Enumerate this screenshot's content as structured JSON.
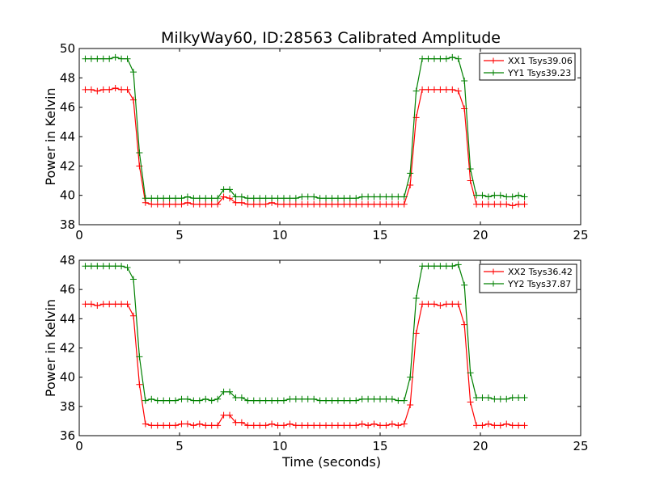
{
  "chart_data": {
    "type": "line",
    "title": "MilkyWay60, ID:28563 Calibrated Amplitude",
    "xlabel": "Time (seconds)",
    "grid": false,
    "panels": [
      {
        "ylabel": "Power in Kelvin",
        "xlim": [
          0,
          25
        ],
        "ylim": [
          38,
          50
        ],
        "xticks": [
          "0",
          "5",
          "10",
          "15",
          "20",
          "25"
        ],
        "yticks": [
          "38",
          "40",
          "42",
          "44",
          "46",
          "48",
          "50"
        ],
        "legend_position": "top-right",
        "x": [
          0.3,
          0.6,
          0.9,
          1.2,
          1.5,
          1.8,
          2.1,
          2.4,
          2.7,
          3.0,
          3.3,
          3.6,
          3.9,
          4.2,
          4.5,
          4.8,
          5.1,
          5.4,
          5.7,
          6.0,
          6.3,
          6.6,
          6.9,
          7.2,
          7.5,
          7.8,
          8.1,
          8.4,
          8.7,
          9.0,
          9.3,
          9.6,
          9.9,
          10.2,
          10.5,
          10.8,
          11.1,
          11.4,
          11.7,
          12.0,
          12.3,
          12.6,
          12.9,
          13.2,
          13.5,
          13.8,
          14.1,
          14.4,
          14.7,
          15.0,
          15.3,
          15.6,
          15.9,
          16.2,
          16.5,
          16.8,
          17.1,
          17.4,
          17.7,
          18.0,
          18.3,
          18.6,
          18.9,
          19.2,
          19.5,
          19.8,
          20.1,
          20.4,
          20.7,
          21.0,
          21.3,
          21.6,
          21.9,
          22.2
        ],
        "series": [
          {
            "name": "XX1 Tsys39.06",
            "color": "#ff0000",
            "values": [
              47.2,
              47.2,
              47.1,
              47.2,
              47.2,
              47.3,
              47.2,
              47.2,
              46.5,
              42.0,
              39.5,
              39.4,
              39.4,
              39.4,
              39.4,
              39.4,
              39.4,
              39.5,
              39.4,
              39.4,
              39.4,
              39.4,
              39.4,
              39.9,
              39.8,
              39.5,
              39.5,
              39.4,
              39.4,
              39.4,
              39.4,
              39.5,
              39.4,
              39.4,
              39.4,
              39.4,
              39.4,
              39.4,
              39.4,
              39.4,
              39.4,
              39.4,
              39.4,
              39.4,
              39.4,
              39.4,
              39.4,
              39.4,
              39.4,
              39.4,
              39.4,
              39.4,
              39.4,
              39.4,
              40.7,
              45.3,
              47.2,
              47.2,
              47.2,
              47.2,
              47.2,
              47.2,
              47.1,
              45.9,
              41.0,
              39.4,
              39.4,
              39.4,
              39.4,
              39.4,
              39.4,
              39.3,
              39.4,
              39.4
            ]
          },
          {
            "name": "YY1 Tsys39.23",
            "color": "#008000",
            "values": [
              49.3,
              49.3,
              49.3,
              49.3,
              49.3,
              49.4,
              49.3,
              49.3,
              48.4,
              42.9,
              39.8,
              39.8,
              39.8,
              39.8,
              39.8,
              39.8,
              39.8,
              39.9,
              39.8,
              39.8,
              39.8,
              39.8,
              39.8,
              40.4,
              40.4,
              39.9,
              39.9,
              39.8,
              39.8,
              39.8,
              39.8,
              39.8,
              39.8,
              39.8,
              39.8,
              39.8,
              39.9,
              39.9,
              39.9,
              39.8,
              39.8,
              39.8,
              39.8,
              39.8,
              39.8,
              39.8,
              39.9,
              39.9,
              39.9,
              39.9,
              39.9,
              39.9,
              39.9,
              39.9,
              41.5,
              47.1,
              49.3,
              49.3,
              49.3,
              49.3,
              49.3,
              49.4,
              49.3,
              47.8,
              41.8,
              40.0,
              40.0,
              39.9,
              40.0,
              40.0,
              39.9,
              39.9,
              40.0,
              39.9
            ]
          }
        ]
      },
      {
        "ylabel": "Power in Kelvin",
        "xlim": [
          0,
          25
        ],
        "ylim": [
          36,
          48
        ],
        "xticks": [
          "0",
          "5",
          "10",
          "15",
          "20",
          "25"
        ],
        "yticks": [
          "36",
          "38",
          "40",
          "42",
          "44",
          "46",
          "48"
        ],
        "legend_position": "top-right",
        "x": [
          0.3,
          0.6,
          0.9,
          1.2,
          1.5,
          1.8,
          2.1,
          2.4,
          2.7,
          3.0,
          3.3,
          3.6,
          3.9,
          4.2,
          4.5,
          4.8,
          5.1,
          5.4,
          5.7,
          6.0,
          6.3,
          6.6,
          6.9,
          7.2,
          7.5,
          7.8,
          8.1,
          8.4,
          8.7,
          9.0,
          9.3,
          9.6,
          9.9,
          10.2,
          10.5,
          10.8,
          11.1,
          11.4,
          11.7,
          12.0,
          12.3,
          12.6,
          12.9,
          13.2,
          13.5,
          13.8,
          14.1,
          14.4,
          14.7,
          15.0,
          15.3,
          15.6,
          15.9,
          16.2,
          16.5,
          16.8,
          17.1,
          17.4,
          17.7,
          18.0,
          18.3,
          18.6,
          18.9,
          19.2,
          19.5,
          19.8,
          20.1,
          20.4,
          20.7,
          21.0,
          21.3,
          21.6,
          21.9,
          22.2
        ],
        "series": [
          {
            "name": "XX2 Tsys36.42",
            "color": "#ff0000",
            "values": [
              45.0,
              45.0,
              44.9,
              45.0,
              45.0,
              45.0,
              45.0,
              45.0,
              44.2,
              39.5,
              36.8,
              36.7,
              36.7,
              36.7,
              36.7,
              36.7,
              36.8,
              36.8,
              36.7,
              36.8,
              36.7,
              36.7,
              36.7,
              37.4,
              37.4,
              36.9,
              36.9,
              36.7,
              36.7,
              36.7,
              36.7,
              36.8,
              36.7,
              36.7,
              36.8,
              36.7,
              36.7,
              36.7,
              36.7,
              36.7,
              36.7,
              36.7,
              36.7,
              36.7,
              36.7,
              36.7,
              36.8,
              36.7,
              36.8,
              36.7,
              36.7,
              36.8,
              36.7,
              36.8,
              38.1,
              43.0,
              45.0,
              45.0,
              45.0,
              44.9,
              45.0,
              45.0,
              45.0,
              43.6,
              38.3,
              36.7,
              36.7,
              36.8,
              36.7,
              36.7,
              36.8,
              36.7,
              36.7,
              36.7
            ]
          },
          {
            "name": "YY2 Tsys37.87",
            "color": "#008000",
            "values": [
              47.6,
              47.6,
              47.6,
              47.6,
              47.6,
              47.6,
              47.6,
              47.5,
              46.7,
              41.4,
              38.4,
              38.5,
              38.4,
              38.4,
              38.4,
              38.4,
              38.5,
              38.5,
              38.4,
              38.4,
              38.5,
              38.4,
              38.5,
              39.0,
              39.0,
              38.6,
              38.6,
              38.4,
              38.4,
              38.4,
              38.4,
              38.4,
              38.4,
              38.4,
              38.5,
              38.5,
              38.5,
              38.5,
              38.5,
              38.4,
              38.4,
              38.4,
              38.4,
              38.4,
              38.4,
              38.4,
              38.5,
              38.5,
              38.5,
              38.5,
              38.5,
              38.5,
              38.4,
              38.4,
              40.0,
              45.4,
              47.6,
              47.6,
              47.6,
              47.6,
              47.6,
              47.6,
              47.7,
              46.3,
              40.3,
              38.6,
              38.6,
              38.6,
              38.5,
              38.5,
              38.5,
              38.6,
              38.6,
              38.6
            ]
          }
        ]
      }
    ]
  }
}
